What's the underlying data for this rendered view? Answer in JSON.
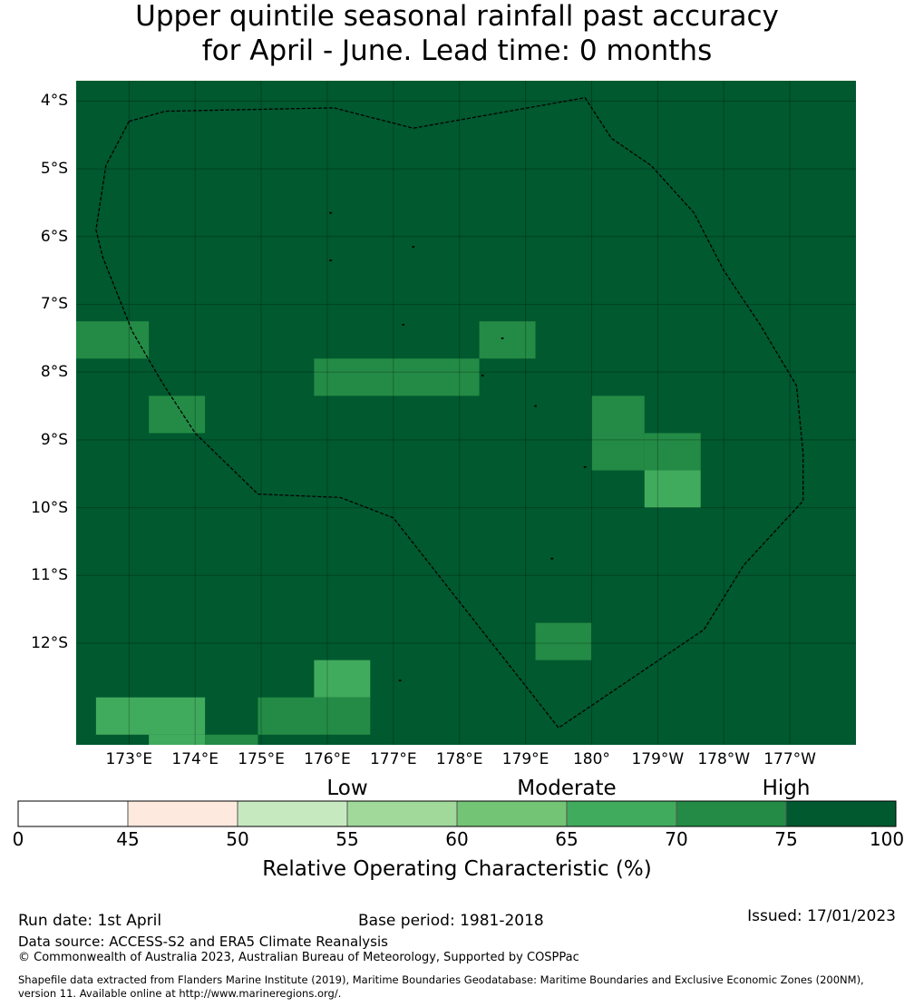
{
  "title": {
    "line1": "Upper quintile seasonal rainfall past accuracy",
    "line2": "for April - June. Lead time: 0 months"
  },
  "map": {
    "background_color": "#00592f",
    "lat_labels": [
      "4°S",
      "5°S",
      "6°S",
      "7°S",
      "8°S",
      "9°S",
      "10°S",
      "11°S",
      "12°S"
    ],
    "lat_values": [
      -4,
      -5,
      -6,
      -7,
      -8,
      -9,
      -10,
      -11,
      -12
    ],
    "lon_labels": [
      "173°E",
      "174°E",
      "175°E",
      "176°E",
      "177°E",
      "178°E",
      "179°E",
      "180°",
      "179°W",
      "178°W",
      "177°W"
    ],
    "lon_values": [
      173,
      174,
      175,
      176,
      177,
      178,
      179,
      180,
      181,
      182,
      183
    ],
    "lat_range": [
      -13.5,
      -3.7
    ],
    "lon_range": [
      172.2,
      184.0
    ],
    "cells": [
      {
        "lon": [
          172.2,
          173.3
        ],
        "lat": [
          -7.25,
          -7.8
        ],
        "value": 72
      },
      {
        "lon": [
          173.3,
          174.15
        ],
        "lat": [
          -8.35,
          -8.9
        ],
        "value": 72
      },
      {
        "lon": [
          175.8,
          178.3
        ],
        "lat": [
          -7.8,
          -8.35
        ],
        "value": 72
      },
      {
        "lon": [
          178.3,
          179.15
        ],
        "lat": [
          -7.25,
          -7.8
        ],
        "value": 72
      },
      {
        "lon": [
          180.0,
          180.8
        ],
        "lat": [
          -8.35,
          -9.45
        ],
        "value": 72
      },
      {
        "lon": [
          180.8,
          181.65
        ],
        "lat": [
          -8.9,
          -9.45
        ],
        "value": 72
      },
      {
        "lon": [
          180.8,
          181.65
        ],
        "lat": [
          -9.45,
          -10.0
        ],
        "value": 67
      },
      {
        "lon": [
          179.15,
          180.0
        ],
        "lat": [
          -11.7,
          -12.25
        ],
        "value": 72
      },
      {
        "lon": [
          175.8,
          176.65
        ],
        "lat": [
          -12.25,
          -12.8
        ],
        "value": 67
      },
      {
        "lon": [
          174.95,
          176.65
        ],
        "lat": [
          -12.8,
          -13.35
        ],
        "value": 72
      },
      {
        "lon": [
          172.5,
          174.15
        ],
        "lat": [
          -12.8,
          -13.35
        ],
        "value": 67
      },
      {
        "lon": [
          173.3,
          174.15
        ],
        "lat": [
          -13.35,
          -13.5
        ],
        "value": 67
      },
      {
        "lon": [
          174.15,
          174.95
        ],
        "lat": [
          -13.35,
          -13.5
        ],
        "value": 72
      }
    ],
    "eez_boundary": [
      [
        173.0,
        -4.3
      ],
      [
        173.55,
        -4.15
      ],
      [
        176.1,
        -4.1
      ],
      [
        177.3,
        -4.4
      ],
      [
        179.9,
        -3.95
      ],
      [
        180.3,
        -4.55
      ],
      [
        180.9,
        -4.95
      ],
      [
        181.55,
        -5.65
      ],
      [
        182.0,
        -6.5
      ],
      [
        182.55,
        -7.3
      ],
      [
        183.1,
        -8.2
      ],
      [
        183.2,
        -9.2
      ],
      [
        183.2,
        -9.9
      ],
      [
        182.3,
        -10.85
      ],
      [
        181.7,
        -11.8
      ],
      [
        179.5,
        -13.25
      ],
      [
        177.0,
        -10.15
      ],
      [
        176.2,
        -9.85
      ],
      [
        174.95,
        -9.8
      ],
      [
        174.0,
        -8.9
      ],
      [
        173.5,
        -8.15
      ],
      [
        173.05,
        -7.4
      ],
      [
        172.6,
        -6.3
      ],
      [
        172.5,
        -5.9
      ],
      [
        172.65,
        -4.95
      ],
      [
        173.0,
        -4.3
      ]
    ]
  },
  "colorbar": {
    "ticks": [
      "0",
      "45",
      "50",
      "55",
      "60",
      "65",
      "70",
      "75",
      "100"
    ],
    "colors": [
      "#ffffff",
      "#fee9df",
      "#c7e9c0",
      "#a1d99b",
      "#74c476",
      "#41ab5d",
      "#238b45",
      "#00592f"
    ],
    "categories": [
      {
        "label": "Low",
        "position": 55
      },
      {
        "label": "Moderate",
        "position": 65
      },
      {
        "label": "High",
        "position": 75
      }
    ],
    "label": "Relative Operating Characteristic (%)"
  },
  "footer": {
    "run_date": "Run date: 1st April",
    "base_period": "Base period: 1981-2018",
    "issued": "Issued: 17/01/2023",
    "data_source": "Data source: ACCESS-S2 and ERA5 Climate Reanalysis",
    "copyright": "© Commonwealth of Australia 2023, Australian Bureau of Meteorology, Supported by COSPPac",
    "shapefile_line1": "Shapefile data extracted from Flanders Marine Institute (2019), Maritime Boundaries Geodatabase: Maritime Boundaries and Exclusive Economic Zones (200NM),",
    "shapefile_line2": "version 11. Available online at http://www.marineregions.org/."
  }
}
